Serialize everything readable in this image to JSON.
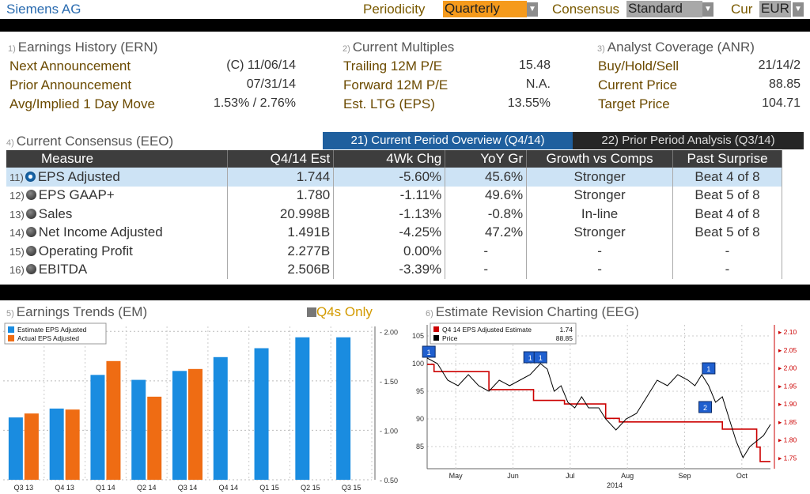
{
  "header": {
    "company": "Siemens AG",
    "periodicity_label": "Periodicity",
    "periodicity_value": "Quarterly",
    "consensus_label": "Consensus",
    "consensus_value": "Standard",
    "currency_label": "Cur",
    "currency_value": "EUR"
  },
  "earnings_history": {
    "num": "1)",
    "title": "Earnings History (ERN)",
    "rows": [
      {
        "label": "Next Announcement",
        "value": "(C)  11/06/14"
      },
      {
        "label": "Prior Announcement",
        "value": "07/31/14"
      },
      {
        "label": "Avg/Implied 1 Day Move",
        "value": "1.53% / 2.76%"
      }
    ]
  },
  "current_multiples": {
    "num": "2)",
    "title": "Current Multiples",
    "rows": [
      {
        "label": "Trailing 12M P/E",
        "value": "15.48"
      },
      {
        "label": "Forward 12M P/E",
        "value": "N.A."
      },
      {
        "label": "Est. LTG (EPS)",
        "value": "13.55%"
      }
    ]
  },
  "analyst_coverage": {
    "num": "3)",
    "title": "Analyst Coverage (ANR)",
    "rows": [
      {
        "label": "Buy/Hold/Sell",
        "value": "21/14/2"
      },
      {
        "label": "Current Price",
        "value": "88.85"
      },
      {
        "label": "Target Price",
        "value": "104.71"
      }
    ]
  },
  "consensus": {
    "num": "4)",
    "title": "Current Consensus (EEO)",
    "tab_current": "21) Current Period Overview (Q4/14)",
    "tab_prior": "22) Prior Period Analysis (Q3/14)",
    "columns": [
      "Measure",
      "Q4/14 Est",
      "4Wk Chg",
      "YoY Gr",
      "Growth vs Comps",
      "Past Surprise"
    ],
    "rows": [
      {
        "num": "11)",
        "measure": "EPS Adjusted",
        "est": "1.744",
        "chg": "-5.60%",
        "yoy": "45.6%",
        "growth": "Stronger",
        "surprise": "Beat 4 of 8"
      },
      {
        "num": "12)",
        "measure": "EPS GAAP+",
        "est": "1.780",
        "chg": "-1.11%",
        "yoy": "49.6%",
        "growth": "Stronger",
        "surprise": "Beat 5 of 8"
      },
      {
        "num": "13)",
        "measure": "Sales",
        "est": "20.998B",
        "chg": "-1.13%",
        "yoy": "-0.8%",
        "growth": "In-line",
        "surprise": "Beat 4 of 8"
      },
      {
        "num": "14)",
        "measure": "Net Income Adjusted",
        "est": "1.491B",
        "chg": "-4.25%",
        "yoy": "47.2%",
        "growth": "Stronger",
        "surprise": "Beat 5 of 8"
      },
      {
        "num": "15)",
        "measure": "Operating Profit",
        "est": "2.277B",
        "chg": "0.00%",
        "yoy": "-",
        "growth": "-",
        "surprise": "-"
      },
      {
        "num": "16)",
        "measure": "EBITDA",
        "est": "2.506B",
        "chg": "-3.39%",
        "yoy": "-",
        "growth": "-",
        "surprise": "-"
      }
    ]
  },
  "earnings_trends": {
    "num": "5)",
    "title": "Earnings Trends (EM)",
    "toggle_label": "Q4s Only"
  },
  "revision": {
    "num": "6)",
    "title": "Estimate Revision Charting (EEG)"
  },
  "chart_data": [
    {
      "type": "bar",
      "categories": [
        "Q3 13",
        "Q4 13",
        "Q1 14",
        "Q2 14",
        "Q3 14",
        "Q4 14",
        "Q1 15",
        "Q2 15",
        "Q3 15"
      ],
      "series": [
        {
          "name": "Estimate EPS Adjusted",
          "color": "#1a8ce0",
          "values": [
            1.13,
            1.22,
            1.56,
            1.51,
            1.6,
            1.74,
            1.83,
            1.94,
            1.94
          ]
        },
        {
          "name": "Actual EPS Adjusted",
          "color": "#ef6c13",
          "values": [
            1.17,
            1.21,
            1.7,
            1.34,
            1.62,
            null,
            null,
            null,
            null
          ]
        }
      ],
      "yticks": [
        "0.50",
        "1.00",
        "1.50",
        "2.00"
      ],
      "ylim": [
        0.5,
        2.05
      ],
      "grid": true,
      "legend": "top-left"
    },
    {
      "type": "line",
      "x_labels": [
        "May",
        "Jun",
        "Jul",
        "Aug",
        "Sep",
        "Oct"
      ],
      "x_year": "2014",
      "left_ticks": [
        "85",
        "90",
        "95",
        "100",
        "105"
      ],
      "right_ticks": [
        "1.75",
        "1.80",
        "1.85",
        "1.90",
        "1.95",
        "2.00",
        "2.05",
        "2.10"
      ],
      "left_ylim": [
        81,
        107
      ],
      "right_ylim": [
        1.72,
        2.12
      ],
      "series": [
        {
          "name": "Q4 14 EPS Adjusted Estimate",
          "last": "1.74",
          "color": "#cc0000",
          "axis": "right",
          "points": [
            [
              0.0,
              2.01
            ],
            [
              0.02,
              2.01
            ],
            [
              0.02,
              1.99
            ],
            [
              0.18,
              1.99
            ],
            [
              0.18,
              1.94
            ],
            [
              0.31,
              1.94
            ],
            [
              0.31,
              1.91
            ],
            [
              0.4,
              1.91
            ],
            [
              0.4,
              1.9
            ],
            [
              0.52,
              1.9
            ],
            [
              0.52,
              1.86
            ],
            [
              0.56,
              1.86
            ],
            [
              0.56,
              1.85
            ],
            [
              0.86,
              1.85
            ],
            [
              0.86,
              1.83
            ],
            [
              0.96,
              1.83
            ],
            [
              0.96,
              1.78
            ],
            [
              0.97,
              1.78
            ],
            [
              0.97,
              1.74
            ],
            [
              1.0,
              1.74
            ]
          ]
        },
        {
          "name": "Price",
          "last": "88.85",
          "color": "#000000",
          "axis": "left",
          "points": [
            [
              0.0,
              101
            ],
            [
              0.03,
              100
            ],
            [
              0.06,
              97
            ],
            [
              0.09,
              96
            ],
            [
              0.12,
              98
            ],
            [
              0.15,
              96
            ],
            [
              0.18,
              95
            ],
            [
              0.21,
              97
            ],
            [
              0.24,
              96
            ],
            [
              0.27,
              97
            ],
            [
              0.3,
              98
            ],
            [
              0.33,
              100
            ],
            [
              0.35,
              99
            ],
            [
              0.37,
              95
            ],
            [
              0.39,
              96
            ],
            [
              0.41,
              93
            ],
            [
              0.43,
              92
            ],
            [
              0.45,
              94
            ],
            [
              0.47,
              92
            ],
            [
              0.5,
              92
            ],
            [
              0.52,
              90
            ],
            [
              0.55,
              88
            ],
            [
              0.58,
              90
            ],
            [
              0.61,
              91
            ],
            [
              0.64,
              94
            ],
            [
              0.67,
              97
            ],
            [
              0.7,
              96
            ],
            [
              0.73,
              98
            ],
            [
              0.76,
              97
            ],
            [
              0.78,
              96
            ],
            [
              0.8,
              98
            ],
            [
              0.82,
              96
            ],
            [
              0.84,
              93
            ],
            [
              0.86,
              94
            ],
            [
              0.88,
              90
            ],
            [
              0.9,
              86
            ],
            [
              0.92,
              83
            ],
            [
              0.94,
              85
            ],
            [
              0.96,
              86
            ],
            [
              0.98,
              87
            ],
            [
              1.0,
              89
            ]
          ]
        }
      ],
      "markers": [
        {
          "label": "1",
          "date_frac": 0.005,
          "value": 102
        },
        {
          "label": "1",
          "date_frac": 0.3,
          "value": 101
        },
        {
          "label": "1",
          "date_frac": 0.33,
          "value": 101
        },
        {
          "label": "1",
          "date_frac": 0.82,
          "value": 99
        },
        {
          "label": "2",
          "date_frac": 0.81,
          "value": 92
        }
      ],
      "grid": true,
      "legend": "top-left"
    }
  ]
}
